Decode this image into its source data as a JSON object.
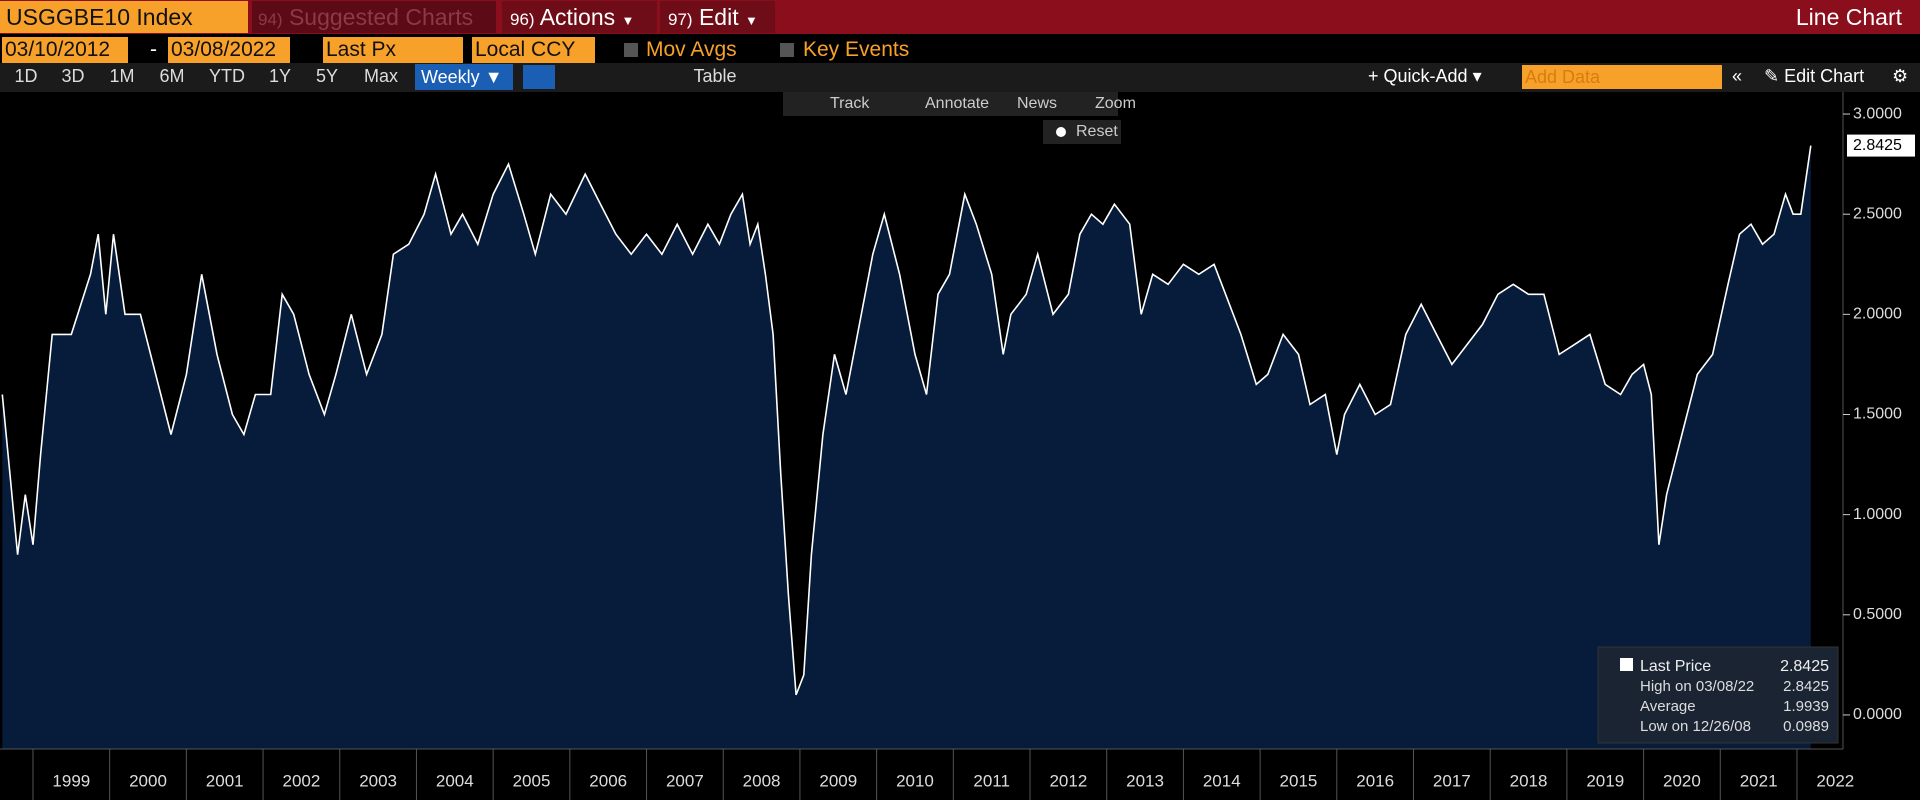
{
  "toolbar": {
    "ticker": "USGGBE10 Index",
    "suggested_num": "94)",
    "suggested": "Suggested Charts",
    "actions_num": "96)",
    "actions": "Actions",
    "edit_num": "97)",
    "edit": "Edit",
    "chart_type": "Line Chart",
    "start_date": "03/10/2012",
    "end_date": "03/08/2022",
    "field": "Last Px",
    "currency": "Local CCY",
    "mov_avgs": "Mov Avgs",
    "key_events": "Key Events",
    "periods": [
      "1D",
      "3D",
      "1M",
      "6M",
      "YTD",
      "1Y",
      "5Y",
      "Max"
    ],
    "frequency": "Weekly",
    "table": "Table",
    "quick_add": "Quick-Add",
    "add_data": "Add Data",
    "edit_chart": "Edit Chart"
  },
  "chart_tools": [
    "Track",
    "Annotate",
    "News",
    "Zoom"
  ],
  "reset": "Reset",
  "chart_data": {
    "type": "line",
    "x": [
      1998.6,
      1998.7,
      1998.8,
      1998.9,
      1999.0,
      1999.1,
      1999.25,
      1999.5,
      1999.75,
      1999.85,
      1999.95,
      2000.05,
      2000.2,
      2000.4,
      2000.6,
      2000.8,
      2001.0,
      2001.2,
      2001.4,
      2001.6,
      2001.75,
      2001.9,
      2002.1,
      2002.25,
      2002.4,
      2002.6,
      2002.8,
      2002.95,
      2003.15,
      2003.35,
      2003.55,
      2003.7,
      2003.9,
      2004.1,
      2004.25,
      2004.45,
      2004.6,
      2004.8,
      2005.0,
      2005.2,
      2005.4,
      2005.55,
      2005.75,
      2005.95,
      2006.2,
      2006.4,
      2006.6,
      2006.8,
      2007.0,
      2007.2,
      2007.4,
      2007.6,
      2007.8,
      2007.95,
      2008.1,
      2008.25,
      2008.35,
      2008.45,
      2008.55,
      2008.65,
      2008.75,
      2008.85,
      2008.95,
      2009.05,
      2009.15,
      2009.3,
      2009.45,
      2009.6,
      2009.75,
      2009.95,
      2010.1,
      2010.3,
      2010.5,
      2010.65,
      2010.8,
      2010.95,
      2011.15,
      2011.3,
      2011.5,
      2011.65,
      2011.75,
      2011.95,
      2012.1,
      2012.3,
      2012.5,
      2012.65,
      2012.8,
      2012.95,
      2013.1,
      2013.3,
      2013.45,
      2013.6,
      2013.8,
      2014.0,
      2014.2,
      2014.4,
      2014.55,
      2014.75,
      2014.95,
      2015.1,
      2015.3,
      2015.5,
      2015.65,
      2015.85,
      2016.0,
      2016.1,
      2016.3,
      2016.5,
      2016.7,
      2016.9,
      2017.1,
      2017.3,
      2017.5,
      2017.7,
      2017.9,
      2018.1,
      2018.3,
      2018.5,
      2018.7,
      2018.9,
      2019.1,
      2019.3,
      2019.5,
      2019.7,
      2019.85,
      2020.0,
      2020.1,
      2020.2,
      2020.3,
      2020.5,
      2020.7,
      2020.9,
      2021.1,
      2021.25,
      2021.4,
      2021.55,
      2021.7,
      2021.85,
      2021.95,
      2022.05,
      2022.18
    ],
    "series": [
      {
        "name": "Last Price",
        "color": "#ffffff",
        "fill": "#061c3a",
        "values": [
          1.6,
          1.2,
          0.8,
          1.1,
          0.85,
          1.3,
          1.9,
          1.9,
          2.2,
          2.4,
          2.0,
          2.4,
          2.0,
          2.0,
          1.7,
          1.4,
          1.7,
          2.2,
          1.8,
          1.5,
          1.4,
          1.6,
          1.6,
          2.1,
          2.0,
          1.7,
          1.5,
          1.7,
          2.0,
          1.7,
          1.9,
          2.3,
          2.35,
          2.5,
          2.7,
          2.4,
          2.5,
          2.35,
          2.6,
          2.75,
          2.5,
          2.3,
          2.6,
          2.5,
          2.7,
          2.55,
          2.4,
          2.3,
          2.4,
          2.3,
          2.45,
          2.3,
          2.45,
          2.35,
          2.5,
          2.6,
          2.35,
          2.45,
          2.2,
          1.9,
          1.2,
          0.6,
          0.1,
          0.2,
          0.8,
          1.4,
          1.8,
          1.6,
          1.9,
          2.3,
          2.5,
          2.2,
          1.8,
          1.6,
          2.1,
          2.2,
          2.6,
          2.45,
          2.2,
          1.8,
          2.0,
          2.1,
          2.3,
          2.0,
          2.1,
          2.4,
          2.5,
          2.45,
          2.55,
          2.45,
          2.0,
          2.2,
          2.15,
          2.25,
          2.2,
          2.25,
          2.1,
          1.9,
          1.65,
          1.7,
          1.9,
          1.8,
          1.55,
          1.6,
          1.3,
          1.5,
          1.65,
          1.5,
          1.55,
          1.9,
          2.05,
          1.9,
          1.75,
          1.85,
          1.95,
          2.1,
          2.15,
          2.1,
          2.1,
          1.8,
          1.85,
          1.9,
          1.65,
          1.6,
          1.7,
          1.75,
          1.6,
          0.85,
          1.1,
          1.4,
          1.7,
          1.8,
          2.15,
          2.4,
          2.45,
          2.35,
          2.4,
          2.6,
          2.5,
          2.5,
          2.8425
        ]
      }
    ],
    "xlim": [
      1998.57,
      2022.6
    ],
    "xticks": [
      1999,
      2000,
      2001,
      2002,
      2003,
      2004,
      2005,
      2006,
      2007,
      2008,
      2009,
      2010,
      2011,
      2012,
      2013,
      2014,
      2015,
      2016,
      2017,
      2018,
      2019,
      2020,
      2021,
      2022
    ],
    "ylim": [
      -0.17,
      3.11
    ],
    "yticks": [
      {
        "value": 0,
        "label": "0.0000"
      },
      {
        "value": 0.5,
        "label": "0.5000"
      },
      {
        "value": 1,
        "label": "1.0000"
      },
      {
        "value": 1.5,
        "label": "1.5000"
      },
      {
        "value": 2,
        "label": "2.0000"
      },
      {
        "value": 2.5,
        "label": "2.5000"
      },
      {
        "value": 3,
        "label": "3.0000"
      }
    ],
    "stats": [
      {
        "label": "High on 03/08/22",
        "value": 2.8425
      },
      {
        "label": "Average",
        "value": 1.9939
      },
      {
        "label": "Low on 12/26/08",
        "value": 0.0989
      }
    ]
  }
}
